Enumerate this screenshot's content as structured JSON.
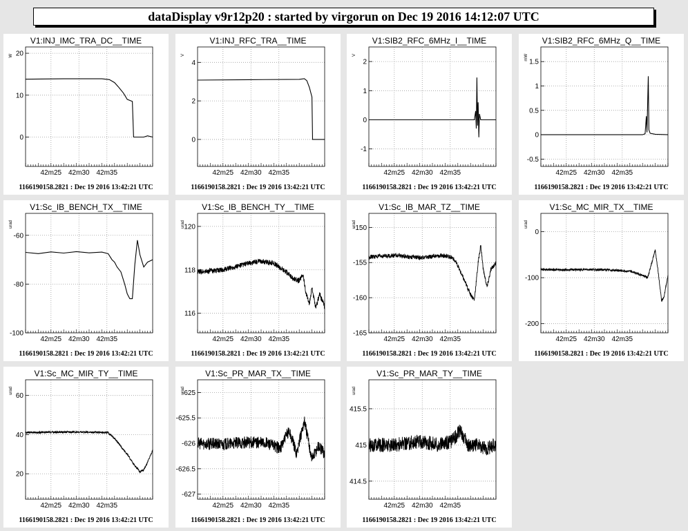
{
  "header": {
    "title": "dataDisplay v9r12p20 : started by virgorun on Dec 19 2016 14:12:07 UTC"
  },
  "chart_data": [
    {
      "type": "line",
      "title": "V1:INJ_IMC_TRA_DC__TIME",
      "ylabel": "W",
      "ylim": [
        -7,
        21.5
      ],
      "yticks": [
        {
          "v": 0,
          "t": "0"
        },
        {
          "v": 10,
          "t": "10"
        },
        {
          "v": 20,
          "t": "20"
        }
      ],
      "xticks": [
        "42m25",
        "42m30",
        "42m35"
      ],
      "series": [
        {
          "values": [
            [
              0,
              13.8
            ],
            [
              0.3,
              13.9
            ],
            [
              0.6,
              13.9
            ],
            [
              0.66,
              13.7
            ],
            [
              0.7,
              13
            ],
            [
              0.73,
              12
            ],
            [
              0.77,
              10.5
            ],
            [
              0.8,
              9
            ],
            [
              0.84,
              8.5
            ],
            [
              0.85,
              0
            ],
            [
              0.88,
              0
            ],
            [
              0.93,
              0
            ],
            [
              0.96,
              0.3
            ],
            [
              1,
              0
            ]
          ]
        }
      ],
      "footer": "1166190158.2821 : Dec 19 2016 13:42:21 UTC"
    },
    {
      "type": "line",
      "title": "V1:INJ_RFC_TRA__TIME",
      "ylabel": "V",
      "ylim": [
        -1.4,
        4.8
      ],
      "yticks": [
        {
          "v": 0,
          "t": "0"
        },
        {
          "v": 2,
          "t": "2"
        },
        {
          "v": 4,
          "t": "4"
        }
      ],
      "xticks": [
        "42m25",
        "42m30",
        "42m35"
      ],
      "series": [
        {
          "values": [
            [
              0,
              3.08
            ],
            [
              0.4,
              3.1
            ],
            [
              0.8,
              3.12
            ],
            [
              0.84,
              3.15
            ],
            [
              0.86,
              3.05
            ],
            [
              0.88,
              2.7
            ],
            [
              0.9,
              2.2
            ],
            [
              0.905,
              0
            ],
            [
              1,
              0
            ]
          ]
        }
      ],
      "footer": "1166190158.2821 : Dec 19 2016 13:42:21 UTC"
    },
    {
      "type": "line",
      "title": "V1:SIB2_RFC_6MHz_I__TIME",
      "ylabel": "V",
      "ylim": [
        -1.6,
        2.5
      ],
      "yticks": [
        {
          "v": -1,
          "t": "-1"
        },
        {
          "v": 0,
          "t": "0"
        },
        {
          "v": 1,
          "t": "1"
        },
        {
          "v": 2,
          "t": "2"
        }
      ],
      "xticks": [
        "42m25",
        "42m30",
        "42m35"
      ],
      "series": [
        {
          "values": [
            [
              0,
              0
            ],
            [
              0.83,
              0
            ],
            [
              0.84,
              0.3
            ],
            [
              0.845,
              -0.3
            ],
            [
              0.85,
              1.45
            ],
            [
              0.855,
              -0.2
            ],
            [
              0.86,
              0.6
            ],
            [
              0.865,
              -0.6
            ],
            [
              0.87,
              0.2
            ],
            [
              0.88,
              0
            ],
            [
              1,
              0
            ]
          ]
        }
      ],
      "footer": "1166190158.2821 : Dec 19 2016 13:42:21 UTC"
    },
    {
      "type": "line",
      "title": "V1:SIB2_RFC_6MHz_Q__TIME",
      "ylabel": "mW",
      "ylim": [
        -0.65,
        1.8
      ],
      "yticks": [
        {
          "v": -0.5,
          "t": "-0.5"
        },
        {
          "v": 0,
          "t": "0"
        },
        {
          "v": 0.5,
          "t": "0.5"
        },
        {
          "v": 1,
          "t": "1"
        },
        {
          "v": 1.5,
          "t": "1.5"
        }
      ],
      "xticks": [
        "42m25",
        "42m30",
        "42m35"
      ],
      "series": [
        {
          "values": [
            [
              0,
              0
            ],
            [
              0.8,
              0
            ],
            [
              0.82,
              0.02
            ],
            [
              0.83,
              0.38
            ],
            [
              0.835,
              0.05
            ],
            [
              0.845,
              1.2
            ],
            [
              0.85,
              0.1
            ],
            [
              0.86,
              0.03
            ],
            [
              0.9,
              0.01
            ],
            [
              1,
              0
            ]
          ]
        }
      ],
      "footer": "1166190158.2821 : Dec 19 2016 13:42:21 UTC"
    },
    {
      "type": "line",
      "title": "V1:Sc_IB_BENCH_TX__TIME",
      "ylabel": "urad",
      "ylim": [
        -100,
        -51
      ],
      "yticks": [
        {
          "v": -100,
          "t": "-100"
        },
        {
          "v": -80,
          "t": "-80"
        },
        {
          "v": -60,
          "t": "-60"
        }
      ],
      "xticks": [
        "42m25",
        "42m30",
        "42m35"
      ],
      "series": [
        {
          "values": [
            [
              0,
              -67
            ],
            [
              0.1,
              -67.5
            ],
            [
              0.2,
              -66.8
            ],
            [
              0.3,
              -67.3
            ],
            [
              0.4,
              -66.7
            ],
            [
              0.5,
              -67.2
            ],
            [
              0.6,
              -66.9
            ],
            [
              0.65,
              -67.5
            ],
            [
              0.68,
              -70
            ],
            [
              0.7,
              -71
            ],
            [
              0.72,
              -73
            ],
            [
              0.75,
              -75
            ],
            [
              0.78,
              -80
            ],
            [
              0.8,
              -84
            ],
            [
              0.82,
              -86
            ],
            [
              0.84,
              -86
            ],
            [
              0.86,
              -72
            ],
            [
              0.88,
              -62
            ],
            [
              0.9,
              -68
            ],
            [
              0.93,
              -73
            ],
            [
              0.96,
              -71
            ],
            [
              1,
              -70
            ]
          ]
        }
      ],
      "footer": "1166190158.2821 : Dec 19 2016 13:42:21 UTC"
    },
    {
      "type": "line",
      "title": "V1:Sc_IB_BENCH_TY__TIME",
      "ylabel": "urad",
      "ylim": [
        115.1,
        120.6
      ],
      "yticks": [
        {
          "v": 116,
          "t": "116"
        },
        {
          "v": 118,
          "t": "118"
        },
        {
          "v": 120,
          "t": "120"
        }
      ],
      "xticks": [
        "42m25",
        "42m30",
        "42m35"
      ],
      "series": [
        {
          "values": [
            [
              0,
              117.9
            ],
            [
              0.2,
              118
            ],
            [
              0.4,
              118.3
            ],
            [
              0.5,
              118.4
            ],
            [
              0.6,
              118.3
            ],
            [
              0.65,
              118.1
            ],
            [
              0.7,
              117.9
            ],
            [
              0.75,
              117.6
            ],
            [
              0.8,
              117.5
            ],
            [
              0.83,
              117.8
            ],
            [
              0.85,
              117
            ],
            [
              0.88,
              116.4
            ],
            [
              0.9,
              117.2
            ],
            [
              0.93,
              116.2
            ],
            [
              0.96,
              116.9
            ],
            [
              1,
              116.3
            ]
          ]
        }
      ],
      "footer": "1166190158.2821 : Dec 19 2016 13:42:21 UTC"
    },
    {
      "type": "line",
      "title": "V1:Sc_IB_MAR_TZ__TIME",
      "ylabel": "urad",
      "ylim": [
        -165,
        -148
      ],
      "yticks": [
        {
          "v": -165,
          "t": "-165"
        },
        {
          "v": -160,
          "t": "-160"
        },
        {
          "v": -155,
          "t": "-155"
        },
        {
          "v": -150,
          "t": "-150"
        }
      ],
      "xticks": [
        "42m25",
        "42m30",
        "42m35"
      ],
      "series": [
        {
          "values": [
            [
              0,
              -154.2
            ],
            [
              0.2,
              -154
            ],
            [
              0.4,
              -154.3
            ],
            [
              0.6,
              -154
            ],
            [
              0.66,
              -154.3
            ],
            [
              0.7,
              -155.5
            ],
            [
              0.75,
              -157.5
            ],
            [
              0.8,
              -159.5
            ],
            [
              0.83,
              -160.3
            ],
            [
              0.86,
              -155
            ],
            [
              0.88,
              -152.5
            ],
            [
              0.9,
              -156
            ],
            [
              0.93,
              -158.5
            ],
            [
              0.96,
              -156
            ],
            [
              1,
              -155
            ]
          ]
        }
      ],
      "footer": "1166190158.2821 : Dec 19 2016 13:42:21 UTC"
    },
    {
      "type": "line",
      "title": "V1:Sc_MC_MIR_TX__TIME",
      "ylabel": "urad",
      "ylim": [
        -220,
        40
      ],
      "yticks": [
        {
          "v": -200,
          "t": "-200"
        },
        {
          "v": -100,
          "t": "-100"
        },
        {
          "v": 0,
          "t": "0"
        }
      ],
      "xticks": [
        "42m25",
        "42m30",
        "42m35"
      ],
      "series": [
        {
          "values": [
            [
              0,
              -82
            ],
            [
              0.2,
              -83
            ],
            [
              0.4,
              -82
            ],
            [
              0.6,
              -84
            ],
            [
              0.7,
              -86
            ],
            [
              0.75,
              -90
            ],
            [
              0.8,
              -95
            ],
            [
              0.84,
              -100
            ],
            [
              0.87,
              -70
            ],
            [
              0.9,
              -40
            ],
            [
              0.92,
              -80
            ],
            [
              0.95,
              -150
            ],
            [
              0.97,
              -140
            ],
            [
              1,
              -95
            ]
          ]
        }
      ],
      "footer": "1166190158.2821 : Dec 19 2016 13:42:21 UTC"
    },
    {
      "type": "line",
      "title": "V1:Sc_MC_MIR_TY__TIME",
      "ylabel": "urad",
      "ylim": [
        7,
        68
      ],
      "yticks": [
        {
          "v": 20,
          "t": "20"
        },
        {
          "v": 40,
          "t": "40"
        },
        {
          "v": 60,
          "t": "60"
        }
      ],
      "xticks": [
        "42m25",
        "42m30",
        "42m35"
      ],
      "series": [
        {
          "values": [
            [
              0,
              41
            ],
            [
              0.3,
              41.3
            ],
            [
              0.6,
              41.2
            ],
            [
              0.65,
              41
            ],
            [
              0.7,
              38
            ],
            [
              0.75,
              34
            ],
            [
              0.8,
              30
            ],
            [
              0.85,
              25
            ],
            [
              0.9,
              21
            ],
            [
              0.93,
              22
            ],
            [
              0.96,
              26
            ],
            [
              1,
              32
            ]
          ]
        }
      ],
      "footer": "1166190158.2821 : Dec 19 2016 13:42:21 UTC"
    },
    {
      "type": "line",
      "title": "V1:Sc_PR_MAR_TX__TIME",
      "ylabel": "urad",
      "ylim": [
        -627.1,
        -624.75
      ],
      "yticks": [
        {
          "v": -627,
          "t": "-627"
        },
        {
          "v": -626.5,
          "t": "-626.5"
        },
        {
          "v": -626,
          "t": "-626"
        },
        {
          "v": -625.5,
          "t": "-625.5"
        },
        {
          "v": -625,
          "t": "-625"
        }
      ],
      "xticks": [
        "42m25",
        "42m30",
        "42m35"
      ],
      "series": [
        {
          "values": [
            [
              0,
              -626
            ],
            [
              0.2,
              -626.02
            ],
            [
              0.4,
              -625.98
            ],
            [
              0.55,
              -626
            ],
            [
              0.65,
              -626.1
            ],
            [
              0.72,
              -625.75
            ],
            [
              0.78,
              -626.2
            ],
            [
              0.84,
              -625.55
            ],
            [
              0.9,
              -626.3
            ],
            [
              0.95,
              -626.05
            ],
            [
              1,
              -626.2
            ]
          ]
        }
      ],
      "footer": "1166190158.2821 : Dec 19 2016 13:42:21 UTC"
    },
    {
      "type": "line",
      "title": "V1:Sc_PR_MAR_TY__TIME",
      "ylabel": "urad",
      "ylim": [
        414.25,
        415.9
      ],
      "yticks": [
        {
          "v": 414.5,
          "t": "414.5"
        },
        {
          "v": 415,
          "t": "415"
        },
        {
          "v": 415.5,
          "t": "415.5"
        }
      ],
      "xticks": [
        "42m25",
        "42m30",
        "42m35"
      ],
      "series": [
        {
          "values": [
            [
              0,
              415
            ],
            [
              0.2,
              415
            ],
            [
              0.4,
              415.05
            ],
            [
              0.55,
              415
            ],
            [
              0.65,
              415.05
            ],
            [
              0.72,
              415.2
            ],
            [
              0.78,
              415
            ],
            [
              0.85,
              415
            ],
            [
              0.92,
              414.95
            ],
            [
              1,
              415
            ]
          ]
        }
      ],
      "footer": "1166190158.2821 : Dec 19 2016 13:42:21 UTC"
    }
  ]
}
